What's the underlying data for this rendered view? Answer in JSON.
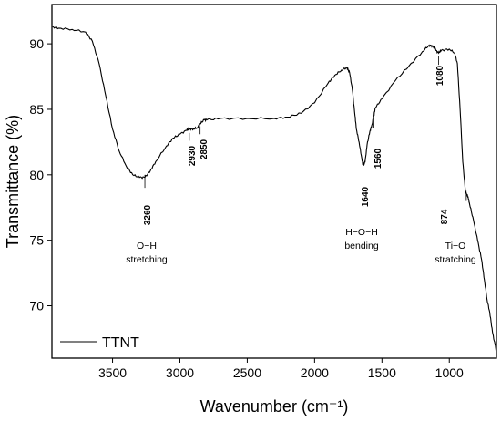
{
  "chart_data": {
    "type": "line",
    "xlabel": "Wavenumber (cm⁻¹)",
    "ylabel": "Transmittance (%)",
    "xlim": [
      3950,
      650
    ],
    "ylim": [
      66,
      93
    ],
    "x_reversed": true,
    "grid": false,
    "legend_position": "bottom-left",
    "x_ticks": [
      3500,
      3000,
      2500,
      2000,
      1500,
      1000
    ],
    "y_ticks": [
      70,
      75,
      80,
      85,
      90
    ],
    "series": [
      {
        "name": "TTNT",
        "color": "#000000",
        "x": [
          3950,
          3900,
          3800,
          3700,
          3650,
          3600,
          3550,
          3500,
          3450,
          3400,
          3350,
          3300,
          3260,
          3220,
          3180,
          3100,
          3050,
          3000,
          2950,
          2930,
          2900,
          2870,
          2850,
          2820,
          2800,
          2700,
          2500,
          2300,
          2200,
          2100,
          2000,
          1900,
          1850,
          1800,
          1760,
          1740,
          1720,
          1700,
          1690,
          1670,
          1650,
          1640,
          1625,
          1610,
          1590,
          1575,
          1560,
          1550,
          1500,
          1400,
          1300,
          1200,
          1150,
          1120,
          1100,
          1080,
          1060,
          1000,
          960,
          940,
          920,
          900,
          880,
          874,
          860,
          850,
          820,
          790,
          760,
          740,
          720,
          700,
          680,
          660,
          650
        ],
        "y": [
          91.3,
          91.2,
          91.1,
          90.9,
          90.2,
          88.5,
          86.0,
          83.5,
          81.8,
          80.7,
          80.0,
          79.8,
          79.8,
          80.3,
          81.0,
          82.2,
          82.8,
          83.1,
          83.4,
          83.5,
          83.5,
          83.6,
          83.9,
          84.2,
          84.2,
          84.3,
          84.3,
          84.3,
          84.4,
          84.7,
          85.5,
          87.0,
          87.6,
          88.0,
          88.2,
          87.8,
          86.5,
          84.5,
          83.5,
          82.5,
          81.3,
          80.7,
          81.0,
          82.3,
          83.3,
          83.8,
          84.5,
          85.1,
          85.8,
          87.2,
          88.3,
          89.4,
          89.9,
          89.8,
          89.5,
          89.3,
          89.5,
          89.6,
          89.3,
          88.5,
          85.0,
          81.0,
          78.7,
          78.6,
          78.3,
          77.8,
          76.5,
          75.0,
          73.5,
          72.0,
          70.5,
          69.5,
          68.0,
          67.0,
          66.5
        ]
      }
    ],
    "annotations": {
      "p3260": "3260",
      "p2930": "2930",
      "p2850": "2850",
      "p1640": "1640",
      "p1560": "1560",
      "p1080": "1080",
      "p874": "874",
      "oh_line1": "O−H",
      "oh_line2": "stretching",
      "hoh_line1": "H−O−H",
      "hoh_line2": "bending",
      "tio_line1": "Ti−O",
      "tio_line2": "stratching"
    }
  }
}
